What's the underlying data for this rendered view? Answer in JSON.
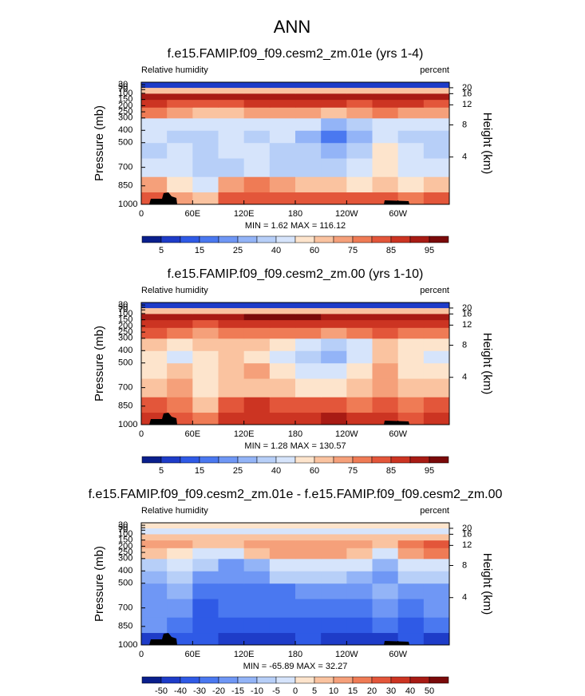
{
  "title": "ANN",
  "chart_data": [
    {
      "type": "contour",
      "title": "f.e15.FAMIP.f09_f09.cesm2_zm.01e (yrs 1-4)",
      "left_label": "Relative humidity",
      "right_label": "percent",
      "y_label": "Pressure (mb)",
      "y2_label": "Height (km)",
      "stats": "MIN =   1.62  MAX = 116.12",
      "xlim": [
        0,
        360
      ],
      "xticks": [
        0,
        {
          "value": 60,
          "label": "60E"
        },
        {
          "value": 120,
          "label": "120E"
        },
        180,
        {
          "value": 240,
          "label": "120W"
        },
        {
          "value": 300,
          "label": "60W"
        }
      ],
      "ylim": [
        1000,
        10
      ],
      "yticks": [
        1000,
        850,
        700,
        500,
        400,
        300,
        250,
        200,
        150,
        100,
        70,
        50,
        30
      ],
      "y2lim": [
        0.11,
        31
      ],
      "y2ticks": [
        4,
        8,
        12,
        16,
        20
      ],
      "x": [
        15,
        45,
        75,
        105,
        135,
        165,
        195,
        225,
        255,
        285,
        315,
        345
      ],
      "y": [
        950,
        850,
        700,
        550,
        450,
        350,
        250,
        175,
        125,
        75,
        30
      ],
      "z": [
        [
          80,
          70,
          60,
          80,
          80,
          80,
          80,
          80,
          80,
          80,
          75,
          80
        ],
        [
          70,
          55,
          45,
          70,
          75,
          70,
          65,
          60,
          55,
          60,
          55,
          65
        ],
        [
          45,
          40,
          30,
          35,
          40,
          35,
          35,
          35,
          40,
          50,
          40,
          40
        ],
        [
          35,
          40,
          35,
          40,
          40,
          35,
          30,
          25,
          35,
          50,
          40,
          35
        ],
        [
          40,
          30,
          35,
          40,
          35,
          40,
          25,
          15,
          25,
          40,
          35,
          30
        ],
        [
          45,
          40,
          40,
          45,
          45,
          45,
          40,
          25,
          35,
          45,
          45,
          40
        ],
        [
          75,
          70,
          60,
          65,
          70,
          70,
          70,
          65,
          70,
          75,
          70,
          70
        ],
        [
          85,
          80,
          80,
          80,
          85,
          85,
          85,
          85,
          80,
          85,
          85,
          80
        ],
        [
          90,
          90,
          90,
          90,
          90,
          90,
          90,
          90,
          90,
          90,
          90,
          90
        ],
        [
          60,
          60,
          60,
          60,
          60,
          60,
          60,
          60,
          60,
          60,
          60,
          60
        ],
        [
          5,
          5,
          5,
          5,
          5,
          5,
          5,
          5,
          5,
          5,
          5,
          5
        ]
      ],
      "levels": [
        5,
        10,
        15,
        20,
        25,
        30,
        40,
        50,
        60,
        70,
        75,
        80,
        85,
        90,
        95
      ],
      "colorbar_ticks": [
        5,
        15,
        25,
        40,
        60,
        75,
        85,
        95
      ],
      "colors": [
        "#0a1f8c",
        "#1e3cc8",
        "#2f5ae6",
        "#4a78f0",
        "#6f97f5",
        "#93b4f7",
        "#b7cff8",
        "#d6e4fb",
        "#fde4cc",
        "#fac3a0",
        "#f5a07a",
        "#ef7b55",
        "#e3563a",
        "#cc3422",
        "#a81b14",
        "#7a0a0a"
      ]
    },
    {
      "type": "contour",
      "title": "f.e15.FAMIP.f09_f09.cesm2_zm.00 (yrs 1-10)",
      "left_label": "Relative humidity",
      "right_label": "percent",
      "y_label": "Pressure (mb)",
      "y2_label": "Height (km)",
      "stats": "MIN =   1.28  MAX = 130.57",
      "xlim": [
        0,
        360
      ],
      "xticks": [
        0,
        {
          "value": 60,
          "label": "60E"
        },
        {
          "value": 120,
          "label": "120E"
        },
        180,
        {
          "value": 240,
          "label": "120W"
        },
        {
          "value": 300,
          "label": "60W"
        }
      ],
      "ylim": [
        1000,
        10
      ],
      "yticks": [
        1000,
        850,
        700,
        500,
        400,
        300,
        250,
        200,
        150,
        100,
        70,
        50,
        30
      ],
      "y2lim": [
        0.11,
        31
      ],
      "y2ticks": [
        4,
        8,
        12,
        16,
        20
      ],
      "x": [
        15,
        45,
        75,
        105,
        135,
        165,
        195,
        225,
        255,
        285,
        315,
        345
      ],
      "y": [
        950,
        850,
        700,
        550,
        450,
        350,
        250,
        175,
        125,
        75,
        30
      ],
      "z": [
        [
          85,
          80,
          75,
          85,
          85,
          85,
          85,
          90,
          85,
          85,
          80,
          85
        ],
        [
          80,
          75,
          65,
          80,
          85,
          80,
          80,
          80,
          75,
          80,
          75,
          80
        ],
        [
          65,
          70,
          55,
          60,
          65,
          60,
          55,
          55,
          60,
          70,
          60,
          60
        ],
        [
          55,
          60,
          50,
          60,
          70,
          55,
          45,
          40,
          55,
          70,
          55,
          50
        ],
        [
          55,
          45,
          50,
          60,
          55,
          45,
          30,
          25,
          40,
          60,
          50,
          40
        ],
        [
          60,
          55,
          60,
          65,
          60,
          50,
          40,
          35,
          45,
          60,
          55,
          50
        ],
        [
          80,
          75,
          70,
          75,
          75,
          75,
          75,
          70,
          75,
          80,
          75,
          75
        ],
        [
          85,
          85,
          80,
          85,
          85,
          85,
          85,
          85,
          85,
          85,
          85,
          85
        ],
        [
          90,
          90,
          90,
          90,
          95,
          95,
          95,
          90,
          90,
          90,
          90,
          90
        ],
        [
          60,
          60,
          60,
          60,
          60,
          60,
          60,
          60,
          60,
          60,
          60,
          60
        ],
        [
          5,
          5,
          5,
          5,
          5,
          5,
          5,
          5,
          5,
          5,
          5,
          5
        ]
      ],
      "levels": [
        5,
        10,
        15,
        20,
        25,
        30,
        40,
        50,
        60,
        70,
        75,
        80,
        85,
        90,
        95
      ],
      "colorbar_ticks": [
        5,
        15,
        25,
        40,
        60,
        75,
        85,
        95
      ],
      "colors": [
        "#0a1f8c",
        "#1e3cc8",
        "#2f5ae6",
        "#4a78f0",
        "#6f97f5",
        "#93b4f7",
        "#b7cff8",
        "#d6e4fb",
        "#fde4cc",
        "#fac3a0",
        "#f5a07a",
        "#ef7b55",
        "#e3563a",
        "#cc3422",
        "#a81b14",
        "#7a0a0a"
      ]
    },
    {
      "type": "contour",
      "title": "f.e15.FAMIP.f09_f09.cesm2_zm.01e - f.e15.FAMIP.f09_f09.cesm2_zm.00",
      "left_label": "Relative humidity",
      "right_label": "percent",
      "y_label": "Pressure (mb)",
      "y2_label": "Height (km)",
      "stats": "MIN = -65.89  MAX =  32.27",
      "xlim": [
        0,
        360
      ],
      "xticks": [
        0,
        {
          "value": 60,
          "label": "60E"
        },
        {
          "value": 120,
          "label": "120E"
        },
        180,
        {
          "value": 240,
          "label": "120W"
        },
        {
          "value": 300,
          "label": "60W"
        }
      ],
      "ylim": [
        1000,
        10
      ],
      "yticks": [
        1000,
        850,
        700,
        500,
        400,
        300,
        250,
        200,
        150,
        100,
        70,
        50,
        30
      ],
      "y2lim": [
        0.11,
        31
      ],
      "y2ticks": [
        4,
        8,
        12,
        16,
        20
      ],
      "x": [
        15,
        45,
        75,
        105,
        135,
        165,
        195,
        225,
        255,
        285,
        315,
        345
      ],
      "y": [
        950,
        850,
        700,
        550,
        450,
        350,
        250,
        175,
        125,
        75,
        30
      ],
      "z": [
        [
          -50,
          -40,
          -40,
          -50,
          -50,
          -50,
          -40,
          -50,
          -50,
          -50,
          -40,
          -50
        ],
        [
          -20,
          -30,
          -40,
          -40,
          -40,
          -40,
          -40,
          -40,
          -40,
          -30,
          -40,
          -30
        ],
        [
          -20,
          -20,
          -40,
          -30,
          -30,
          -30,
          -30,
          -30,
          -30,
          -20,
          -30,
          -20
        ],
        [
          -20,
          -15,
          -30,
          -30,
          -30,
          -30,
          -20,
          -20,
          -20,
          -15,
          -20,
          -20
        ],
        [
          -15,
          -10,
          -20,
          -20,
          -20,
          -10,
          -10,
          -10,
          -15,
          -20,
          -10,
          -10
        ],
        [
          -10,
          -5,
          -10,
          -20,
          -15,
          -5,
          -5,
          -5,
          -5,
          -15,
          -5,
          -5
        ],
        [
          5,
          0,
          -5,
          -5,
          5,
          10,
          10,
          10,
          5,
          -5,
          10,
          15
        ],
        [
          10,
          10,
          5,
          5,
          10,
          10,
          10,
          10,
          10,
          5,
          15,
          20
        ],
        [
          5,
          5,
          5,
          5,
          5,
          5,
          5,
          5,
          5,
          5,
          5,
          5
        ],
        [
          -5,
          -5,
          -5,
          -5,
          -5,
          -5,
          -5,
          -5,
          -5,
          -5,
          -5,
          -5
        ],
        [
          0,
          0,
          0,
          0,
          0,
          0,
          0,
          0,
          0,
          0,
          0,
          0
        ]
      ],
      "levels": [
        -50,
        -40,
        -30,
        -20,
        -15,
        -10,
        -5,
        0,
        5,
        10,
        15,
        20,
        30,
        40,
        50
      ],
      "colorbar_ticks": [
        -50,
        -40,
        -30,
        -20,
        -15,
        -10,
        -5,
        0,
        5,
        10,
        15,
        20,
        30,
        40,
        50
      ],
      "colors": [
        "#0a1f8c",
        "#1e3cc8",
        "#2f5ae6",
        "#4a78f0",
        "#6f97f5",
        "#93b4f7",
        "#b7cff8",
        "#d6e4fb",
        "#fde4cc",
        "#fac3a0",
        "#f5a07a",
        "#ef7b55",
        "#e3563a",
        "#cc3422",
        "#a81b14",
        "#7a0a0a"
      ]
    }
  ]
}
